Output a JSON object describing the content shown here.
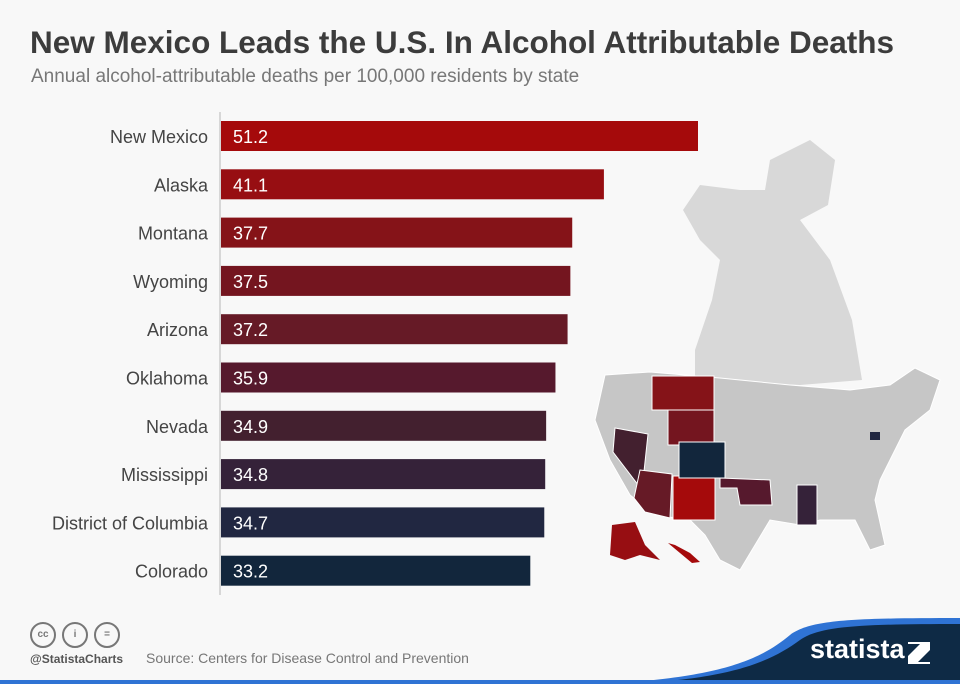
{
  "title": "New Mexico Leads the U.S. In Alcohol Attributable Deaths",
  "subtitle": "Annual alcohol-attributable deaths per 100,000 residents by state",
  "chart_data": {
    "type": "bar",
    "orientation": "horizontal",
    "categories": [
      "New Mexico",
      "Alaska",
      "Montana",
      "Wyoming",
      "Arizona",
      "Oklahoma",
      "Nevada",
      "Mississippi",
      "District of Columbia",
      "Colorado"
    ],
    "values": [
      51.2,
      41.1,
      37.7,
      37.5,
      37.2,
      35.9,
      34.9,
      34.8,
      34.7,
      33.2
    ],
    "colors": [
      "#a50a0b",
      "#970e12",
      "#851318",
      "#74151f",
      "#661a26",
      "#56192d",
      "#43202f",
      "#352239",
      "#212741",
      "#12263c"
    ],
    "xlim": [
      0,
      51.2
    ],
    "grid": false,
    "data_labels": true
  },
  "footer": {
    "handle": "@StatistaCharts",
    "source": "Source: Centers for Disease Control and Prevention",
    "brand": "statista",
    "license_icons": [
      "cc-icon",
      "by-icon",
      "nd-icon"
    ]
  },
  "colors": {
    "brand_dark": "#0e2a45",
    "brand_blue": "#2f73d4",
    "silhouette": "#d8d8d8",
    "map_grey": "#c8c8c8"
  }
}
